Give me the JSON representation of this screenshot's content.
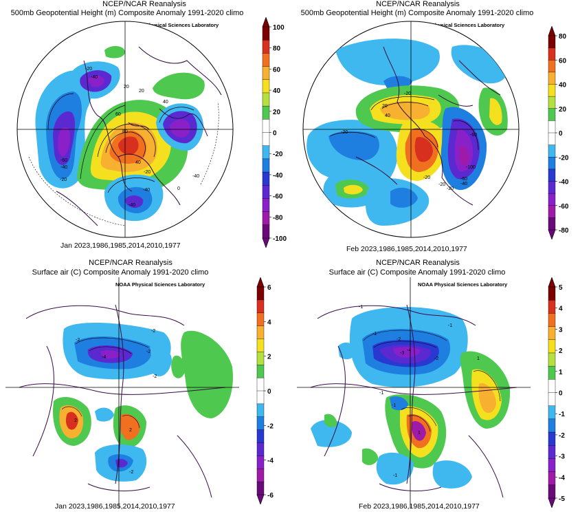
{
  "panels": [
    {
      "id": "top-left",
      "title": "NCEP/NCAR Reanalysis",
      "subtitle": "500mb Geopotential Height (m) Composite Anomaly 1991-2020 climo",
      "lab": "NOAA Physical Sciences Laboratory",
      "footer": "Jan 2023,1986,1985,2014,2010,1977",
      "scale_ticks": [
        "100",
        "80",
        "60",
        "40",
        "20",
        "0",
        "-20",
        "-40",
        "-60",
        "-80",
        "-100"
      ],
      "colors": [
        "#7b0000",
        "#d7301f",
        "#f07020",
        "#f7b030",
        "#f5e020",
        "#b5e040",
        "#4ec84e",
        "#ffffff",
        "#ffffff",
        "#3fb8f0",
        "#1e7fe0",
        "#2838d0",
        "#5a2ad0",
        "#8a20c8",
        "#a01aa8",
        "#6a0a78"
      ],
      "contour_labels": [
        "-20",
        "-40",
        "20",
        "40",
        "60",
        "80",
        "-20",
        "-40",
        "-60",
        "-40",
        "-20",
        "-40",
        "-40",
        "20",
        "40",
        "0"
      ]
    },
    {
      "id": "top-right",
      "title": "NCEP/NCAR Reanalysis",
      "subtitle": "500mb Geopotential Height (m) Composite Anomaly 1991-2020 climo",
      "lab": "NOAA Physical Sciences Laboratory",
      "footer": "Feb 2023,1986,1985,2014,2010,1977",
      "scale_ticks": [
        "80",
        "60",
        "40",
        "20",
        "0",
        "-20",
        "-40",
        "-60",
        "-80"
      ],
      "colors": [
        "#7b0000",
        "#d7301f",
        "#f07020",
        "#f7b030",
        "#f5e020",
        "#b5e040",
        "#4ec84e",
        "#ffffff",
        "#ffffff",
        "#3fb8f0",
        "#1e7fe0",
        "#2838d0",
        "#5a2ad0",
        "#8a20c8",
        "#a01aa8",
        "#6a0a78"
      ],
      "contour_labels": [
        "-20",
        "20",
        "40",
        "-20",
        "-60",
        "-100",
        "-60",
        "-40",
        "-20",
        "-20",
        "-20"
      ]
    },
    {
      "id": "bottom-left",
      "title": "NCEP/NCAR Reanalysis",
      "subtitle": "Surface air (C) Composite Anomaly 1991-2020 climo",
      "lab": "NOAA Physical Sciences Laboratory",
      "footer": "Jan 2023,1986,1985,2014,2010,1977",
      "scale_ticks": [
        "6",
        "4",
        "2",
        "0",
        "-2",
        "-4",
        "-6"
      ],
      "colors": [
        "#7b0000",
        "#d7301f",
        "#f07020",
        "#f7b030",
        "#f5e020",
        "#b5e040",
        "#4ec84e",
        "#ffffff",
        "#ffffff",
        "#3fb8f0",
        "#1e7fe0",
        "#2838d0",
        "#5a2ad0",
        "#8a20c8",
        "#a01aa8",
        "#6a0a78"
      ],
      "contour_labels": [
        "-2",
        "-2",
        "-4",
        "-2",
        "-2",
        "2",
        "2",
        "-2"
      ]
    },
    {
      "id": "bottom-right",
      "title": "NCEP/NCAR Reanalysis",
      "subtitle": "Surface air (C) Composite Anomaly 1991-2020 climo",
      "lab": "NOAA Physical Sciences Laboratory",
      "footer": "Feb 2023,1986,1985,2014,2010,1977",
      "scale_ticks": [
        "5",
        "4",
        "3",
        "2",
        "1",
        "0",
        "-1",
        "-2",
        "-3",
        "-4",
        "-5"
      ],
      "colors": [
        "#7b0000",
        "#d7301f",
        "#f07020",
        "#f7b030",
        "#f5e020",
        "#b5e040",
        "#4ec84e",
        "#ffffff",
        "#ffffff",
        "#3fb8f0",
        "#1e7fe0",
        "#2838d0",
        "#5a2ad0",
        "#8a20c8",
        "#a01aa8",
        "#6a0a78"
      ],
      "contour_labels": [
        "-1",
        "-1",
        "-2",
        "-3",
        "-4",
        "-1",
        "-2",
        "-1",
        "-1",
        "1",
        "1",
        "-1"
      ]
    }
  ]
}
